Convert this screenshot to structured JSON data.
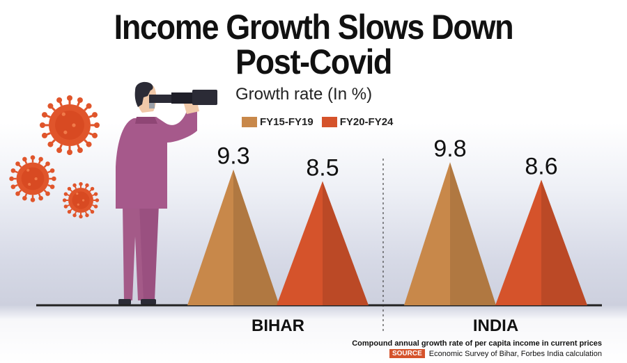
{
  "title_line1": "Income Growth Slows Down",
  "title_line2": "Post-Covid",
  "chart_data": {
    "type": "bar",
    "title": "Income Growth Slows Down Post-Covid",
    "subtitle": "Growth rate (In %)",
    "categories": [
      "BIHAR",
      "INDIA"
    ],
    "series": [
      {
        "name": "FY15-FY19",
        "values": [
          9.3,
          9.8
        ],
        "color": "#c8884a"
      },
      {
        "name": "FY20-FY24",
        "values": [
          8.5,
          8.6
        ],
        "color": "#d5532b"
      }
    ],
    "ylim": [
      0,
      10
    ],
    "grid": false,
    "legend_position": "top-center"
  },
  "note": "Compound annual growth rate of per capita income in current prices",
  "source_label": "SOURCE",
  "source_text": "Economic Survey of Bihar, Forbes India calculation",
  "icons": [
    "virus-icon",
    "person-with-telescope-illustration"
  ]
}
